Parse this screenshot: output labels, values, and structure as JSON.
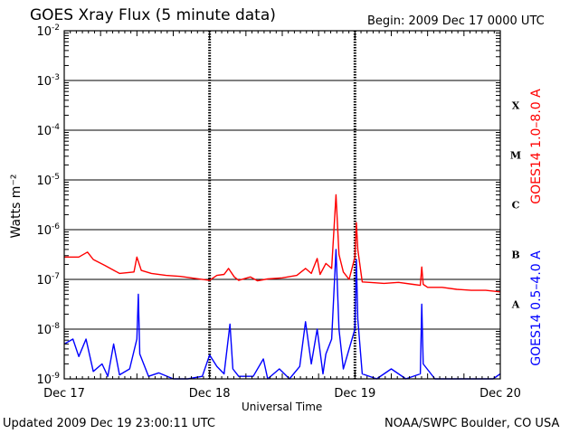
{
  "header": {
    "title": "GOES Xray Flux (5 minute data)",
    "begin": "Begin:  2009 Dec 17 0000 UTC"
  },
  "footer": {
    "updated": "Updated 2009 Dec 19 23:00:11 UTC",
    "credit": "NOAA/SWPC Boulder, CO USA"
  },
  "chart_data": {
    "type": "line",
    "xlabel": "Universal Time",
    "ylabel": "Watts m⁻²",
    "yscale": "log",
    "ylim": [
      1e-09,
      0.01
    ],
    "ytick_exponents": [
      -2,
      -3,
      -4,
      -5,
      -6,
      -7,
      -8,
      -9
    ],
    "grid": true,
    "xlim": [
      "2009-12-17",
      "2009-12-20"
    ],
    "x_ticks": [
      {
        "label": "Dec 17",
        "day": 0
      },
      {
        "label": "Dec 18",
        "day": 1
      },
      {
        "label": "Dec 19",
        "day": 2
      },
      {
        "label": "Dec 20",
        "day": 3
      }
    ],
    "flare_classes": [
      {
        "label": "A",
        "band": [
          -8,
          -7
        ]
      },
      {
        "label": "B",
        "band": [
          -7,
          -6
        ]
      },
      {
        "label": "C",
        "band": [
          -6,
          -5
        ]
      },
      {
        "label": "M",
        "band": [
          -5,
          -4
        ]
      },
      {
        "label": "X",
        "band": [
          -4,
          -3
        ]
      }
    ],
    "series": [
      {
        "name": "GOES14 1.0–8.0 A",
        "color": "#ff0000",
        "log_points": [
          [
            0.0,
            -6.55
          ],
          [
            0.1,
            -6.55
          ],
          [
            0.16,
            -6.45
          ],
          [
            0.2,
            -6.6
          ],
          [
            0.28,
            -6.72
          ],
          [
            0.38,
            -6.88
          ],
          [
            0.48,
            -6.85
          ],
          [
            0.5,
            -6.55
          ],
          [
            0.53,
            -6.82
          ],
          [
            0.6,
            -6.88
          ],
          [
            0.7,
            -6.92
          ],
          [
            0.8,
            -6.94
          ],
          [
            0.9,
            -6.98
          ],
          [
            1.0,
            -7.02
          ],
          [
            1.05,
            -6.92
          ],
          [
            1.1,
            -6.9
          ],
          [
            1.13,
            -6.78
          ],
          [
            1.17,
            -6.95
          ],
          [
            1.2,
            -7.02
          ],
          [
            1.28,
            -6.95
          ],
          [
            1.33,
            -7.03
          ],
          [
            1.4,
            -6.99
          ],
          [
            1.5,
            -6.97
          ],
          [
            1.6,
            -6.92
          ],
          [
            1.66,
            -6.78
          ],
          [
            1.7,
            -6.88
          ],
          [
            1.74,
            -6.58
          ],
          [
            1.76,
            -6.9
          ],
          [
            1.8,
            -6.68
          ],
          [
            1.84,
            -6.78
          ],
          [
            1.87,
            -5.3
          ],
          [
            1.89,
            -6.5
          ],
          [
            1.92,
            -6.85
          ],
          [
            1.96,
            -7.0
          ],
          [
            2.0,
            -6.55
          ],
          [
            2.01,
            -5.86
          ],
          [
            2.02,
            -6.4
          ],
          [
            2.05,
            -7.05
          ],
          [
            2.1,
            -7.06
          ],
          [
            2.2,
            -7.08
          ],
          [
            2.3,
            -7.06
          ],
          [
            2.4,
            -7.1
          ],
          [
            2.45,
            -7.12
          ],
          [
            2.46,
            -6.75
          ],
          [
            2.47,
            -7.1
          ],
          [
            2.5,
            -7.16
          ],
          [
            2.6,
            -7.16
          ],
          [
            2.7,
            -7.2
          ],
          [
            2.8,
            -7.22
          ],
          [
            2.9,
            -7.22
          ],
          [
            3.0,
            -7.25
          ]
        ]
      },
      {
        "name": "GOES14 0.5–4.0 A",
        "color": "#0000ff",
        "log_points": [
          [
            0.0,
            -8.3
          ],
          [
            0.06,
            -8.2
          ],
          [
            0.1,
            -8.55
          ],
          [
            0.15,
            -8.2
          ],
          [
            0.2,
            -8.85
          ],
          [
            0.26,
            -8.7
          ],
          [
            0.3,
            -8.95
          ],
          [
            0.34,
            -8.3
          ],
          [
            0.38,
            -8.92
          ],
          [
            0.45,
            -8.8
          ],
          [
            0.5,
            -8.2
          ],
          [
            0.51,
            -7.3
          ],
          [
            0.52,
            -8.5
          ],
          [
            0.58,
            -8.95
          ],
          [
            0.65,
            -8.88
          ],
          [
            0.75,
            -9.0
          ],
          [
            0.85,
            -9.0
          ],
          [
            0.95,
            -8.95
          ],
          [
            1.0,
            -8.52
          ],
          [
            1.05,
            -8.75
          ],
          [
            1.1,
            -8.9
          ],
          [
            1.14,
            -7.9
          ],
          [
            1.16,
            -8.8
          ],
          [
            1.2,
            -8.95
          ],
          [
            1.3,
            -8.95
          ],
          [
            1.37,
            -8.6
          ],
          [
            1.4,
            -9.0
          ],
          [
            1.48,
            -8.8
          ],
          [
            1.55,
            -9.0
          ],
          [
            1.62,
            -8.75
          ],
          [
            1.66,
            -7.85
          ],
          [
            1.7,
            -8.7
          ],
          [
            1.74,
            -8.0
          ],
          [
            1.78,
            -8.9
          ],
          [
            1.8,
            -8.5
          ],
          [
            1.84,
            -8.2
          ],
          [
            1.87,
            -6.4
          ],
          [
            1.89,
            -8.0
          ],
          [
            1.92,
            -8.8
          ],
          [
            1.96,
            -8.4
          ],
          [
            2.0,
            -8.0
          ],
          [
            2.01,
            -6.6
          ],
          [
            2.02,
            -7.8
          ],
          [
            2.05,
            -8.9
          ],
          [
            2.15,
            -9.0
          ],
          [
            2.25,
            -8.8
          ],
          [
            2.35,
            -9.0
          ],
          [
            2.45,
            -8.9
          ],
          [
            2.46,
            -7.5
          ],
          [
            2.47,
            -8.7
          ],
          [
            2.55,
            -9.0
          ],
          [
            2.65,
            -9.0
          ],
          [
            2.75,
            -9.0
          ],
          [
            2.85,
            -9.0
          ],
          [
            2.95,
            -9.0
          ],
          [
            3.0,
            -8.9
          ]
        ]
      }
    ]
  }
}
